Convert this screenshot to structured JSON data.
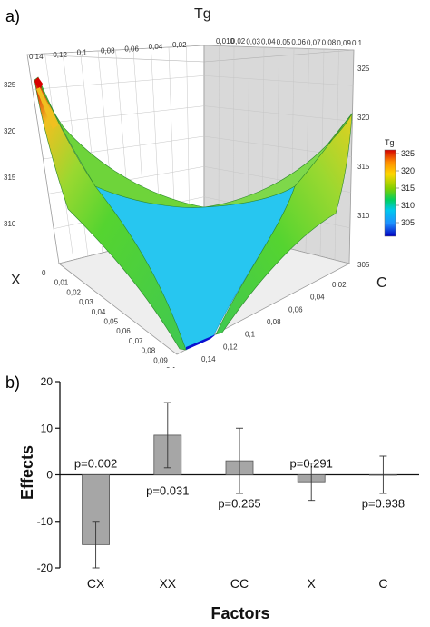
{
  "panel_a": {
    "label": "a)",
    "z_axis_name": "Tg",
    "x_axis_name": "X",
    "c_axis_name": "C",
    "x_ticks_bottom": [
      "0",
      "0,01",
      "0,02",
      "0,03",
      "0,04",
      "0,05",
      "0,06",
      "0,07",
      "0,08",
      "0,09",
      "0,1"
    ],
    "c_ticks_bottom": [
      "0,02",
      "0,04",
      "0,06",
      "0,08",
      "0,1",
      "0,12",
      "0,14"
    ],
    "x_ticks_top": [
      "0,1",
      "0,09",
      "0,08",
      "0,07",
      "0,06",
      "0,05",
      "0,04",
      "0,03",
      "0,02",
      "0,010"
    ],
    "c_ticks_top": [
      "0,14",
      "0,12",
      "0,1",
      "0,08",
      "0,06",
      "0,04",
      "0,02"
    ],
    "z_ticks_left": [
      "325",
      "320",
      "315",
      "310"
    ],
    "z_ticks_right": [
      "325",
      "320",
      "315",
      "310",
      "305"
    ],
    "colorbar": {
      "title": "Tg",
      "ticks": [
        "325",
        "320",
        "315",
        "310",
        "305"
      ],
      "colors": [
        "#d40000",
        "#ff8c00",
        "#ffd700",
        "#7fd000",
        "#00d060",
        "#00c8f0",
        "#1e90ff",
        "#0000c0"
      ]
    },
    "surface_colors": {
      "low": "#0a10d0",
      "cyan": "#27c6f0",
      "green": "#55d430",
      "yellow": "#f0c020",
      "red": "#d80000",
      "wall": "#d9d9d9"
    }
  },
  "panel_b": {
    "label": "b)"
  },
  "chart_data": {
    "type": "bar",
    "title": "",
    "xlabel": "Factors",
    "ylabel": "Effects",
    "ylim": [
      -20,
      20
    ],
    "yticks": [
      -20,
      -10,
      0,
      10,
      20
    ],
    "categories": [
      "CX",
      "XX",
      "CC",
      "X",
      "C"
    ],
    "values": [
      -15,
      8.5,
      3,
      -1.5,
      0
    ],
    "errors": [
      5,
      7,
      7,
      4,
      4
    ],
    "p_values": [
      "p=0.002",
      "p=0.031",
      "p=0.265",
      "p=0.291",
      "p=0.938"
    ],
    "bar_color": "#a6a6a6",
    "grid": false
  }
}
